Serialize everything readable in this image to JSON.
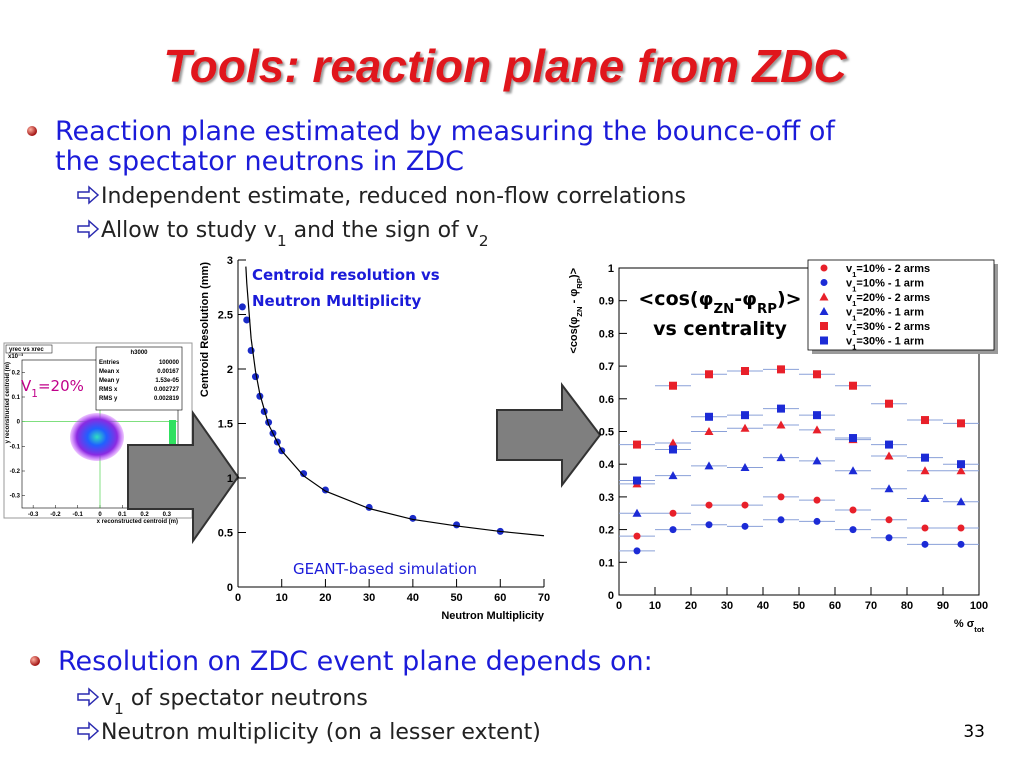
{
  "title": "Tools: reaction plane from ZDC",
  "bullets": [
    {
      "lines": [
        "Reaction plane estimated by measuring the bounce-off of",
        "the spectator neutrons in ZDC"
      ],
      "subs": [
        [
          {
            "t": "Independent estimate, reduced non-flow correlations"
          }
        ],
        [
          {
            "t": "Allow to study v"
          },
          {
            "t": "1",
            "sub": true
          },
          {
            "t": " and the sign of v"
          },
          {
            "t": "2",
            "sub": true
          }
        ]
      ]
    },
    {
      "lines": [
        "Resolution on ZDC event plane depends on:"
      ],
      "subs": [
        [
          {
            "t": "v"
          },
          {
            "t": "1",
            "sub": true
          },
          {
            "t": " of spectator neutrons"
          }
        ],
        [
          {
            "t": "Neutron multiplicity (on a lesser extent)"
          }
        ]
      ]
    }
  ],
  "page_number": "33",
  "inset": {
    "title": "yrec vs xrec",
    "scale": "x10⁻³",
    "stats_title": "h3000",
    "stats": [
      [
        "Entries",
        "100000"
      ],
      [
        "Mean x",
        "0.00167"
      ],
      [
        "Mean y",
        "1.53e-05"
      ],
      [
        "RMS x",
        "0.002727"
      ],
      [
        "RMS y",
        "0.002819"
      ]
    ],
    "xlabel": "x reconstructed centroid (m)",
    "ylabel": "y reconstructed centroid (m)",
    "xlim": [
      -0.35,
      0.35
    ],
    "xticks": [
      -0.3,
      -0.2,
      -0.1,
      0,
      0.1,
      0.2,
      0.3
    ],
    "ylim": [
      -0.35,
      0.25
    ],
    "yticks": [
      -0.3,
      -0.2,
      -0.1,
      0,
      0.1,
      0.2
    ],
    "label": [
      {
        "t": "V"
      },
      {
        "t": "1",
        "sub": true
      },
      {
        "t": "=20%"
      }
    ]
  },
  "chart_data": [
    {
      "type": "scatter",
      "annotation": [
        "Centroid resolution vs",
        "Neutron Multiplicity"
      ],
      "note": "GEANT-based simulation",
      "xlabel": "Neutron Multiplicity",
      "ylabel": "Centroid Resolution (mm)",
      "xlim": [
        0,
        70
      ],
      "xticks": [
        0,
        10,
        20,
        30,
        40,
        50,
        60,
        70
      ],
      "ylim": [
        0,
        3
      ],
      "yticks": [
        0,
        0.5,
        1,
        1.5,
        2,
        2.5,
        3
      ],
      "series": [
        {
          "marker": "circle",
          "color": "#1a2bc8",
          "x": [
            1,
            2,
            3,
            4,
            5,
            6,
            7,
            8,
            9,
            10,
            15,
            20,
            30,
            40,
            50,
            60
          ],
          "values": [
            2.57,
            2.45,
            2.17,
            1.93,
            1.75,
            1.61,
            1.51,
            1.41,
            1.33,
            1.25,
            1.04,
            0.89,
            0.73,
            0.63,
            0.57,
            0.51
          ]
        },
        {
          "style": "line",
          "color": "#000000",
          "x": [
            1.8,
            2,
            3,
            4,
            5,
            7,
            10,
            15,
            20,
            30,
            40,
            50,
            60,
            70
          ],
          "values": [
            2.94,
            2.79,
            2.28,
            1.98,
            1.77,
            1.49,
            1.25,
            1.02,
            0.88,
            0.72,
            0.62,
            0.56,
            0.51,
            0.47
          ]
        }
      ]
    },
    {
      "type": "scatter",
      "annotation": [
        [
          {
            "t": "<cos(φ"
          },
          {
            "t": "ZN",
            "sub": true
          },
          {
            "t": "-φ"
          },
          {
            "t": "RP",
            "sub": true
          },
          {
            "t": ")>"
          }
        ],
        [
          {
            "t": "vs centrality"
          }
        ]
      ],
      "xlabel": [
        {
          "t": "% σ"
        },
        {
          "t": "tot",
          "sub": true
        }
      ],
      "ylabel": [
        {
          "t": "<cos(φ"
        },
        {
          "t": "ZN",
          "sub": true
        },
        {
          "t": " - φ"
        },
        {
          "t": "RP",
          "sub": true
        },
        {
          "t": ")>"
        }
      ],
      "xlim": [
        0,
        100
      ],
      "xticks": [
        0,
        10,
        20,
        30,
        40,
        50,
        60,
        70,
        80,
        90,
        100
      ],
      "ylim": [
        0,
        1
      ],
      "yticks": [
        0,
        0.1,
        0.2,
        0.3,
        0.4,
        0.5,
        0.6,
        0.7,
        0.8,
        0.9,
        1
      ],
      "x": [
        5,
        15,
        25,
        35,
        45,
        55,
        65,
        75,
        85,
        95
      ],
      "xerr": 5,
      "series": [
        {
          "name": [
            {
              "t": "v"
            },
            {
              "t": "1",
              "sub": true
            },
            {
              "t": "=10% - 2 arms"
            }
          ],
          "marker": "circle",
          "color": "#e8202a",
          "values": [
            0.18,
            0.25,
            0.275,
            0.275,
            0.3,
            0.29,
            0.26,
            0.23,
            0.205,
            0.205
          ]
        },
        {
          "name": [
            {
              "t": "v"
            },
            {
              "t": "1",
              "sub": true
            },
            {
              "t": "=10% - 1 arm"
            }
          ],
          "marker": "circle",
          "color": "#1c2bd6",
          "values": [
            0.135,
            0.2,
            0.215,
            0.21,
            0.23,
            0.225,
            0.2,
            0.175,
            0.155,
            0.155
          ]
        },
        {
          "name": [
            {
              "t": "v"
            },
            {
              "t": "1",
              "sub": true
            },
            {
              "t": "=20% - 2 arms"
            }
          ],
          "marker": "triangle",
          "color": "#e8202a",
          "values": [
            0.34,
            0.465,
            0.5,
            0.51,
            0.52,
            0.505,
            0.475,
            0.425,
            0.38,
            0.38
          ]
        },
        {
          "name": [
            {
              "t": "v"
            },
            {
              "t": "1",
              "sub": true
            },
            {
              "t": "=20% - 1 arm"
            }
          ],
          "marker": "triangle",
          "color": "#1c2bd6",
          "values": [
            0.25,
            0.365,
            0.395,
            0.39,
            0.42,
            0.41,
            0.38,
            0.325,
            0.295,
            0.285
          ]
        },
        {
          "name": [
            {
              "t": "v"
            },
            {
              "t": "1",
              "sub": true
            },
            {
              "t": "=30% - 2 arms"
            }
          ],
          "marker": "square",
          "color": "#e8202a",
          "values": [
            0.46,
            0.64,
            0.675,
            0.685,
            0.69,
            0.675,
            0.64,
            0.585,
            0.535,
            0.525
          ]
        },
        {
          "name": [
            {
              "t": "v"
            },
            {
              "t": "1",
              "sub": true
            },
            {
              "t": "=30% - 1 arm"
            }
          ],
          "marker": "square",
          "color": "#1c2bd6",
          "values": [
            0.35,
            0.445,
            0.545,
            0.55,
            0.57,
            0.55,
            0.48,
            0.46,
            0.42,
            0.4
          ]
        }
      ]
    }
  ]
}
